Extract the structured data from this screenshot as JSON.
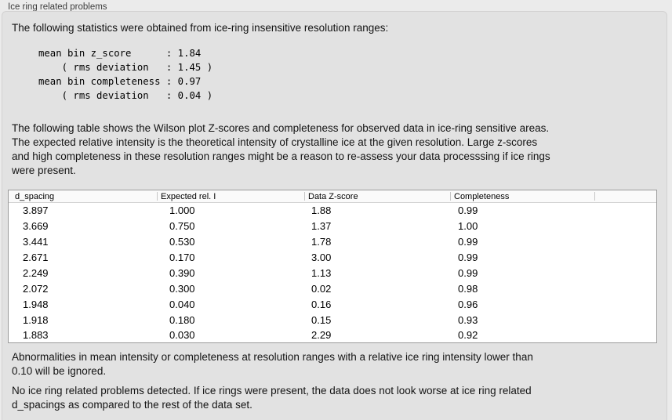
{
  "panel": {
    "title": "Ice ring related problems"
  },
  "intro": {
    "text": "The following statistics were obtained from ice-ring insensitive resolution ranges:"
  },
  "stats_block": {
    "lines": [
      "mean bin z_score      : 1.84",
      "    ( rms deviation   : 1.45 )",
      "mean bin completeness : 0.97",
      "    ( rms deviation   : 0.04 )"
    ]
  },
  "description": {
    "lines": [
      "The following table shows the Wilson plot Z-scores and completeness for observed data in ice-ring sensitive areas.",
      "The expected relative intensity is the theoretical intensity of crystalline ice at the given resolution. Large z-scores",
      "and high completeness in these resolution ranges might be a reason to re-assess your data processsing if ice rings",
      "were present."
    ]
  },
  "table": {
    "columns": [
      "d_spacing",
      "Expected rel. I",
      "Data Z-score",
      "Completeness"
    ],
    "rows": [
      [
        "3.897",
        "1.000",
        "1.88",
        "0.99"
      ],
      [
        "3.669",
        "0.750",
        "1.37",
        "1.00"
      ],
      [
        "3.441",
        "0.530",
        "1.78",
        "0.99"
      ],
      [
        "2.671",
        "0.170",
        "3.00",
        "0.99"
      ],
      [
        "2.249",
        "0.390",
        "1.13",
        "0.99"
      ],
      [
        "2.072",
        "0.300",
        "0.02",
        "0.98"
      ],
      [
        "1.948",
        "0.040",
        "0.16",
        "0.96"
      ],
      [
        "1.918",
        "0.180",
        "0.15",
        "0.93"
      ],
      [
        "1.883",
        "0.030",
        "2.29",
        "0.92"
      ]
    ]
  },
  "ignore_note": {
    "lines": [
      "Abnormalities in mean intensity or completeness at resolution ranges with a relative ice ring intensity lower than",
      "0.10 will be ignored."
    ]
  },
  "conclusion": {
    "lines": [
      "No ice ring related problems detected. If ice rings were present, the data does not look worse at ice ring related",
      "d_spacings as compared to the rest of the data set."
    ]
  },
  "colors": {
    "window_bg": "#ebebeb",
    "panel_bg": "#e2e2e2",
    "panel_border": "#d2d1d1",
    "table_border": "#9b9b9b",
    "table_header_bg": "#fafafa",
    "table_body_bg": "#ffffff",
    "text": "#141414"
  }
}
